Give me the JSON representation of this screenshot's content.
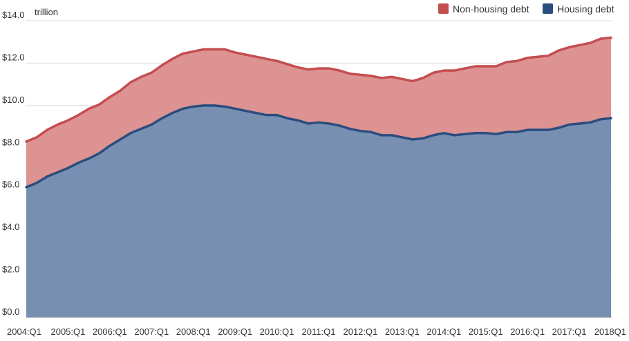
{
  "chart_data": {
    "type": "area",
    "stacked": true,
    "unit_label": "trillion",
    "y_tick_labels": [
      "$0.0",
      "$2.0",
      "$4.0",
      "$6.0",
      "$8.0",
      "$10.0",
      "$12.0",
      "$14.0"
    ],
    "y_ticks": [
      0,
      2,
      4,
      6,
      8,
      10,
      12,
      14
    ],
    "ylim": [
      0,
      14
    ],
    "x_tick_labels": [
      "2004:Q1",
      "2005:Q1",
      "2006:Q1",
      "2007:Q1",
      "2008:Q1",
      "2009:Q1",
      "2010:Q1",
      "2011:Q1",
      "2012:Q1",
      "2013:Q1",
      "2014:Q1",
      "2015:Q1",
      "2016:Q1",
      "2017:Q1",
      "2018Q1"
    ],
    "quarters": [
      "2004:Q1",
      "2004:Q2",
      "2004:Q3",
      "2004:Q4",
      "2005:Q1",
      "2005:Q2",
      "2005:Q3",
      "2005:Q4",
      "2006:Q1",
      "2006:Q2",
      "2006:Q3",
      "2006:Q4",
      "2007:Q1",
      "2007:Q2",
      "2007:Q3",
      "2007:Q4",
      "2008:Q1",
      "2008:Q2",
      "2008:Q3",
      "2008:Q4",
      "2009:Q1",
      "2009:Q2",
      "2009:Q3",
      "2009:Q4",
      "2010:Q1",
      "2010:Q2",
      "2010:Q3",
      "2010:Q4",
      "2011:Q1",
      "2011:Q2",
      "2011:Q3",
      "2011:Q4",
      "2012:Q1",
      "2012:Q2",
      "2012:Q3",
      "2012:Q4",
      "2013:Q1",
      "2013:Q2",
      "2013:Q3",
      "2013:Q4",
      "2014:Q1",
      "2014:Q2",
      "2014:Q3",
      "2014:Q4",
      "2015:Q1",
      "2015:Q2",
      "2015:Q3",
      "2015:Q4",
      "2016:Q1",
      "2016:Q2",
      "2016:Q3",
      "2016:Q4",
      "2017:Q1",
      "2017:Q2",
      "2017:Q3",
      "2017:Q4",
      "2018Q1"
    ],
    "series": [
      {
        "name": "Housing debt",
        "color": "#2a4d7f",
        "fill": "#7790b1",
        "values": [
          6.15,
          6.35,
          6.65,
          6.85,
          7.05,
          7.3,
          7.5,
          7.75,
          8.1,
          8.4,
          8.7,
          8.9,
          9.1,
          9.4,
          9.65,
          9.85,
          9.95,
          10.0,
          10.0,
          9.95,
          9.85,
          9.75,
          9.65,
          9.55,
          9.55,
          9.4,
          9.3,
          9.15,
          9.2,
          9.15,
          9.05,
          8.9,
          8.8,
          8.75,
          8.6,
          8.6,
          8.5,
          8.4,
          8.45,
          8.6,
          8.7,
          8.6,
          8.65,
          8.7,
          8.7,
          8.65,
          8.75,
          8.75,
          8.85,
          8.85,
          8.85,
          8.95,
          9.1,
          9.15,
          9.2,
          9.35,
          9.4
        ]
      },
      {
        "name": "Non-housing debt",
        "color": "#c44d4f",
        "fill": "#dc9391",
        "values": [
          2.15,
          2.15,
          2.2,
          2.25,
          2.25,
          2.25,
          2.35,
          2.3,
          2.3,
          2.3,
          2.4,
          2.45,
          2.45,
          2.5,
          2.55,
          2.6,
          2.6,
          2.65,
          2.65,
          2.7,
          2.65,
          2.65,
          2.65,
          2.65,
          2.55,
          2.55,
          2.5,
          2.55,
          2.55,
          2.6,
          2.6,
          2.6,
          2.65,
          2.65,
          2.7,
          2.75,
          2.75,
          2.75,
          2.85,
          2.95,
          2.95,
          3.05,
          3.1,
          3.15,
          3.15,
          3.2,
          3.3,
          3.35,
          3.4,
          3.45,
          3.5,
          3.65,
          3.65,
          3.7,
          3.75,
          3.8,
          3.8
        ]
      }
    ],
    "legend": {
      "position": "top-right",
      "items": [
        {
          "label": "Non-housing debt",
          "color": "#c44d4f"
        },
        {
          "label": "Housing debt",
          "color": "#2a4d7f"
        }
      ]
    },
    "grid": true
  }
}
